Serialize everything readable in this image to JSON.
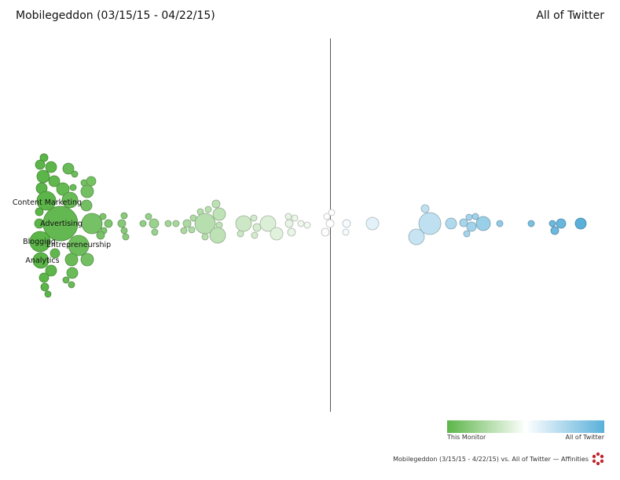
{
  "header": {
    "title": "Mobilegeddon (03/15/15 - 04/22/15)",
    "comparison": "All of Twitter"
  },
  "bubble_labels": [
    "Content Marketing",
    "Advertising",
    "Blogging",
    "Entrepreneurship",
    "Analytics"
  ],
  "legend": {
    "left": "This Monitor",
    "right": "All of Twitter"
  },
  "footer": "Mobilegeddon (3/15/15 - 4/22/15) vs. All of Twitter — Affinities"
}
